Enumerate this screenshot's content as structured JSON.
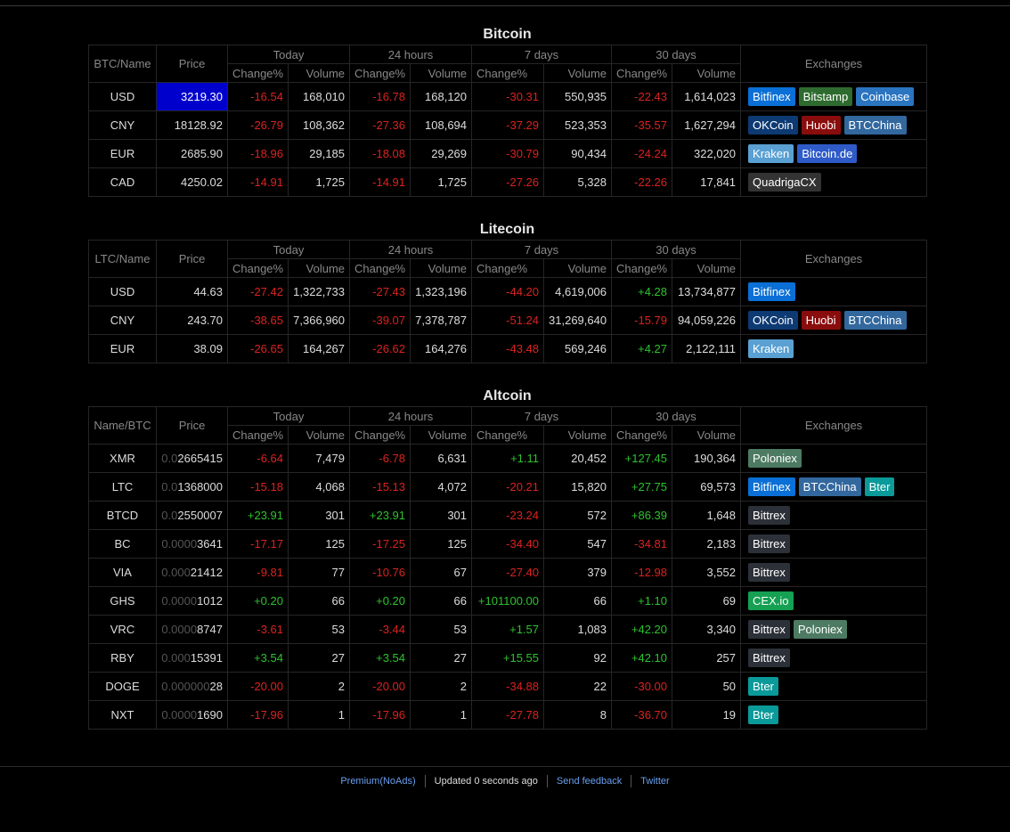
{
  "colors": {
    "negative": "#d9231f",
    "positive": "#2ec22e",
    "price_highlight": "#0000cc",
    "link": "#6a9ff0"
  },
  "exchange_colors": {
    "Bitfinex": "#0a6fd6",
    "Bitstamp": "#2e6b2e",
    "Coinbase": "#2a74c0",
    "OKCoin": "#0d3a73",
    "Huobi": "#8a0d0d",
    "BTCChina": "#32689e",
    "Kraken": "#5aa0d2",
    "Bitcoin.de": "#2e5bc8",
    "QuadrigaCX": "#333333",
    "Poloniex": "#4d7a62",
    "Bter": "#0a9a9a",
    "Bittrex": "#2c3038",
    "CEX.io": "#15a053"
  },
  "headers": {
    "price": "Price",
    "today": "Today",
    "h24": "24 hours",
    "d7": "7 days",
    "d30": "30 days",
    "change": "Change%",
    "volume": "Volume",
    "exchanges": "Exchanges"
  },
  "sections": [
    {
      "title": "Bitcoin",
      "name_header": "BTC/Name",
      "rows": [
        {
          "name": "USD",
          "price": "3219.30",
          "highlight": true,
          "d": [
            [
              "-16.54",
              "168,010"
            ],
            [
              "-16.78",
              "168,120"
            ],
            [
              "-30.31",
              "550,935"
            ],
            [
              "-22.43",
              "1,614,023"
            ]
          ],
          "ex": [
            "Bitfinex",
            "Bitstamp",
            "Coinbase"
          ]
        },
        {
          "name": "CNY",
          "price": "18128.92",
          "d": [
            [
              "-26.79",
              "108,362"
            ],
            [
              "-27.36",
              "108,694"
            ],
            [
              "-37.29",
              "523,353"
            ],
            [
              "-35.57",
              "1,627,294"
            ]
          ],
          "ex": [
            "OKCoin",
            "Huobi",
            "BTCChina"
          ]
        },
        {
          "name": "EUR",
          "price": "2685.90",
          "d": [
            [
              "-18.96",
              "29,185"
            ],
            [
              "-18.08",
              "29,269"
            ],
            [
              "-30.79",
              "90,434"
            ],
            [
              "-24.24",
              "322,020"
            ]
          ],
          "ex": [
            "Kraken",
            "Bitcoin.de"
          ]
        },
        {
          "name": "CAD",
          "price": "4250.02",
          "d": [
            [
              "-14.91",
              "1,725"
            ],
            [
              "-14.91",
              "1,725"
            ],
            [
              "-27.26",
              "5,328"
            ],
            [
              "-22.26",
              "17,841"
            ]
          ],
          "ex": [
            "QuadrigaCX"
          ]
        }
      ]
    },
    {
      "title": "Litecoin",
      "name_header": "LTC/Name",
      "rows": [
        {
          "name": "USD",
          "price": "44.63",
          "d": [
            [
              "-27.42",
              "1,322,733"
            ],
            [
              "-27.43",
              "1,323,196"
            ],
            [
              "-44.20",
              "4,619,006"
            ],
            [
              "+4.28",
              "13,734,877"
            ]
          ],
          "ex": [
            "Bitfinex"
          ]
        },
        {
          "name": "CNY",
          "price": "243.70",
          "d": [
            [
              "-38.65",
              "7,366,960"
            ],
            [
              "-39.07",
              "7,378,787"
            ],
            [
              "-51.24",
              "31,269,640"
            ],
            [
              "-15.79",
              "94,059,226"
            ]
          ],
          "ex": [
            "OKCoin",
            "Huobi",
            "BTCChina"
          ]
        },
        {
          "name": "EUR",
          "price": "38.09",
          "d": [
            [
              "-26.65",
              "164,267"
            ],
            [
              "-26.62",
              "164,276"
            ],
            [
              "-43.48",
              "569,246"
            ],
            [
              "+4.27",
              "2,122,111"
            ]
          ],
          "ex": [
            "Kraken"
          ]
        }
      ]
    },
    {
      "title": "Altcoin",
      "name_header": "Name/BTC",
      "rows": [
        {
          "name": "XMR",
          "price_lead": "0.0",
          "price": "2665415",
          "d": [
            [
              "-6.64",
              "7,479"
            ],
            [
              "-6.78",
              "6,631"
            ],
            [
              "+1.11",
              "20,452"
            ],
            [
              "+127.45",
              "190,364"
            ]
          ],
          "ex": [
            "Poloniex"
          ]
        },
        {
          "name": "LTC",
          "price_lead": "0.0",
          "price": "1368000",
          "d": [
            [
              "-15.18",
              "4,068"
            ],
            [
              "-15.13",
              "4,072"
            ],
            [
              "-20.21",
              "15,820"
            ],
            [
              "+27.75",
              "69,573"
            ]
          ],
          "ex": [
            "Bitfinex",
            "BTCChina",
            "Bter"
          ]
        },
        {
          "name": "BTCD",
          "price_lead": "0.0",
          "price": "2550007",
          "d": [
            [
              "+23.91",
              "301"
            ],
            [
              "+23.91",
              "301"
            ],
            [
              "-23.24",
              "572"
            ],
            [
              "+86.39",
              "1,648"
            ]
          ],
          "ex": [
            "Bittrex"
          ]
        },
        {
          "name": "BC",
          "price_lead": "0.0000",
          "price": "3641",
          "d": [
            [
              "-17.17",
              "125"
            ],
            [
              "-17.25",
              "125"
            ],
            [
              "-34.40",
              "547"
            ],
            [
              "-34.81",
              "2,183"
            ]
          ],
          "ex": [
            "Bittrex"
          ]
        },
        {
          "name": "VIA",
          "price_lead": "0.000",
          "price": "21412",
          "d": [
            [
              "-9.81",
              "77"
            ],
            [
              "-10.76",
              "67"
            ],
            [
              "-27.40",
              "379"
            ],
            [
              "-12.98",
              "3,552"
            ]
          ],
          "ex": [
            "Bittrex"
          ]
        },
        {
          "name": "GHS",
          "price_lead": "0.0000",
          "price": "1012",
          "d": [
            [
              "+0.20",
              "66"
            ],
            [
              "+0.20",
              "66"
            ],
            [
              "+101100.00",
              "66"
            ],
            [
              "+1.10",
              "69"
            ]
          ],
          "ex": [
            "CEX.io"
          ]
        },
        {
          "name": "VRC",
          "price_lead": "0.0000",
          "price": "8747",
          "d": [
            [
              "-3.61",
              "53"
            ],
            [
              "-3.44",
              "53"
            ],
            [
              "+1.57",
              "1,083"
            ],
            [
              "+42.20",
              "3,340"
            ]
          ],
          "ex": [
            "Bittrex",
            "Poloniex"
          ]
        },
        {
          "name": "RBY",
          "price_lead": "0.000",
          "price": "15391",
          "d": [
            [
              "+3.54",
              "27"
            ],
            [
              "+3.54",
              "27"
            ],
            [
              "+15.55",
              "92"
            ],
            [
              "+42.10",
              "257"
            ]
          ],
          "ex": [
            "Bittrex"
          ]
        },
        {
          "name": "DOGE",
          "price_lead": "0.000000",
          "price": "28",
          "d": [
            [
              "-20.00",
              "2"
            ],
            [
              "-20.00",
              "2"
            ],
            [
              "-34.88",
              "22"
            ],
            [
              "-30.00",
              "50"
            ]
          ],
          "ex": [
            "Bter"
          ]
        },
        {
          "name": "NXT",
          "price_lead": "0.0000",
          "price": "1690",
          "d": [
            [
              "-17.96",
              "1"
            ],
            [
              "-17.96",
              "1"
            ],
            [
              "-27.78",
              "8"
            ],
            [
              "-36.70",
              "19"
            ]
          ],
          "ex": [
            "Bter"
          ]
        }
      ]
    }
  ],
  "footer": {
    "premium": "Premium(NoAds)",
    "updated": "Updated 0 seconds ago",
    "feedback": "Send feedback",
    "twitter": "Twitter"
  }
}
